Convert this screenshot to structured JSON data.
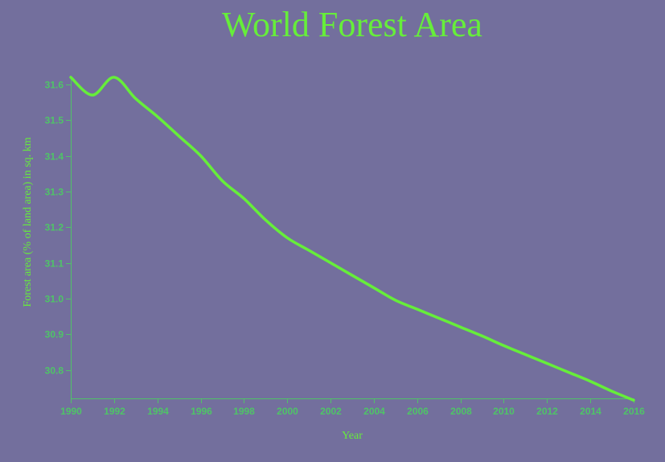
{
  "chart_data": {
    "type": "line",
    "title": "World Forest Area",
    "xlabel": "Year",
    "ylabel": "Forest area (% of land area) in sq. km",
    "xlim": [
      1990,
      2016
    ],
    "ylim": [
      30.72,
      31.62
    ],
    "x_ticks": [
      1990,
      1992,
      1994,
      1996,
      1998,
      2000,
      2002,
      2004,
      2006,
      2008,
      2010,
      2012,
      2014,
      2016
    ],
    "y_ticks": [
      "30.8",
      "30.9",
      "31.0",
      "31.1",
      "31.2",
      "31.3",
      "31.4",
      "31.5",
      "31.6"
    ],
    "grid": false,
    "series": [
      {
        "x": [
          1990,
          1991,
          1992,
          1993,
          1994,
          1995,
          1996,
          1997,
          1998,
          1999,
          2000,
          2001,
          2002,
          2003,
          2004,
          2005,
          2006,
          2007,
          2008,
          2009,
          2010,
          2011,
          2012,
          2013,
          2014,
          2015,
          2016
        ],
        "values": [
          31.62,
          31.57,
          31.62,
          31.56,
          31.51,
          31.455,
          31.4,
          31.33,
          31.28,
          31.22,
          31.17,
          31.135,
          31.1,
          31.065,
          31.03,
          30.995,
          30.97,
          30.945,
          30.92,
          30.895,
          30.868,
          30.843,
          30.818,
          30.793,
          30.768,
          30.74,
          30.715
        ]
      }
    ],
    "colors": {
      "background": "#736f9d",
      "line": "#66ee3a",
      "axis": "#4fc467",
      "text": "#66ee3a"
    }
  }
}
